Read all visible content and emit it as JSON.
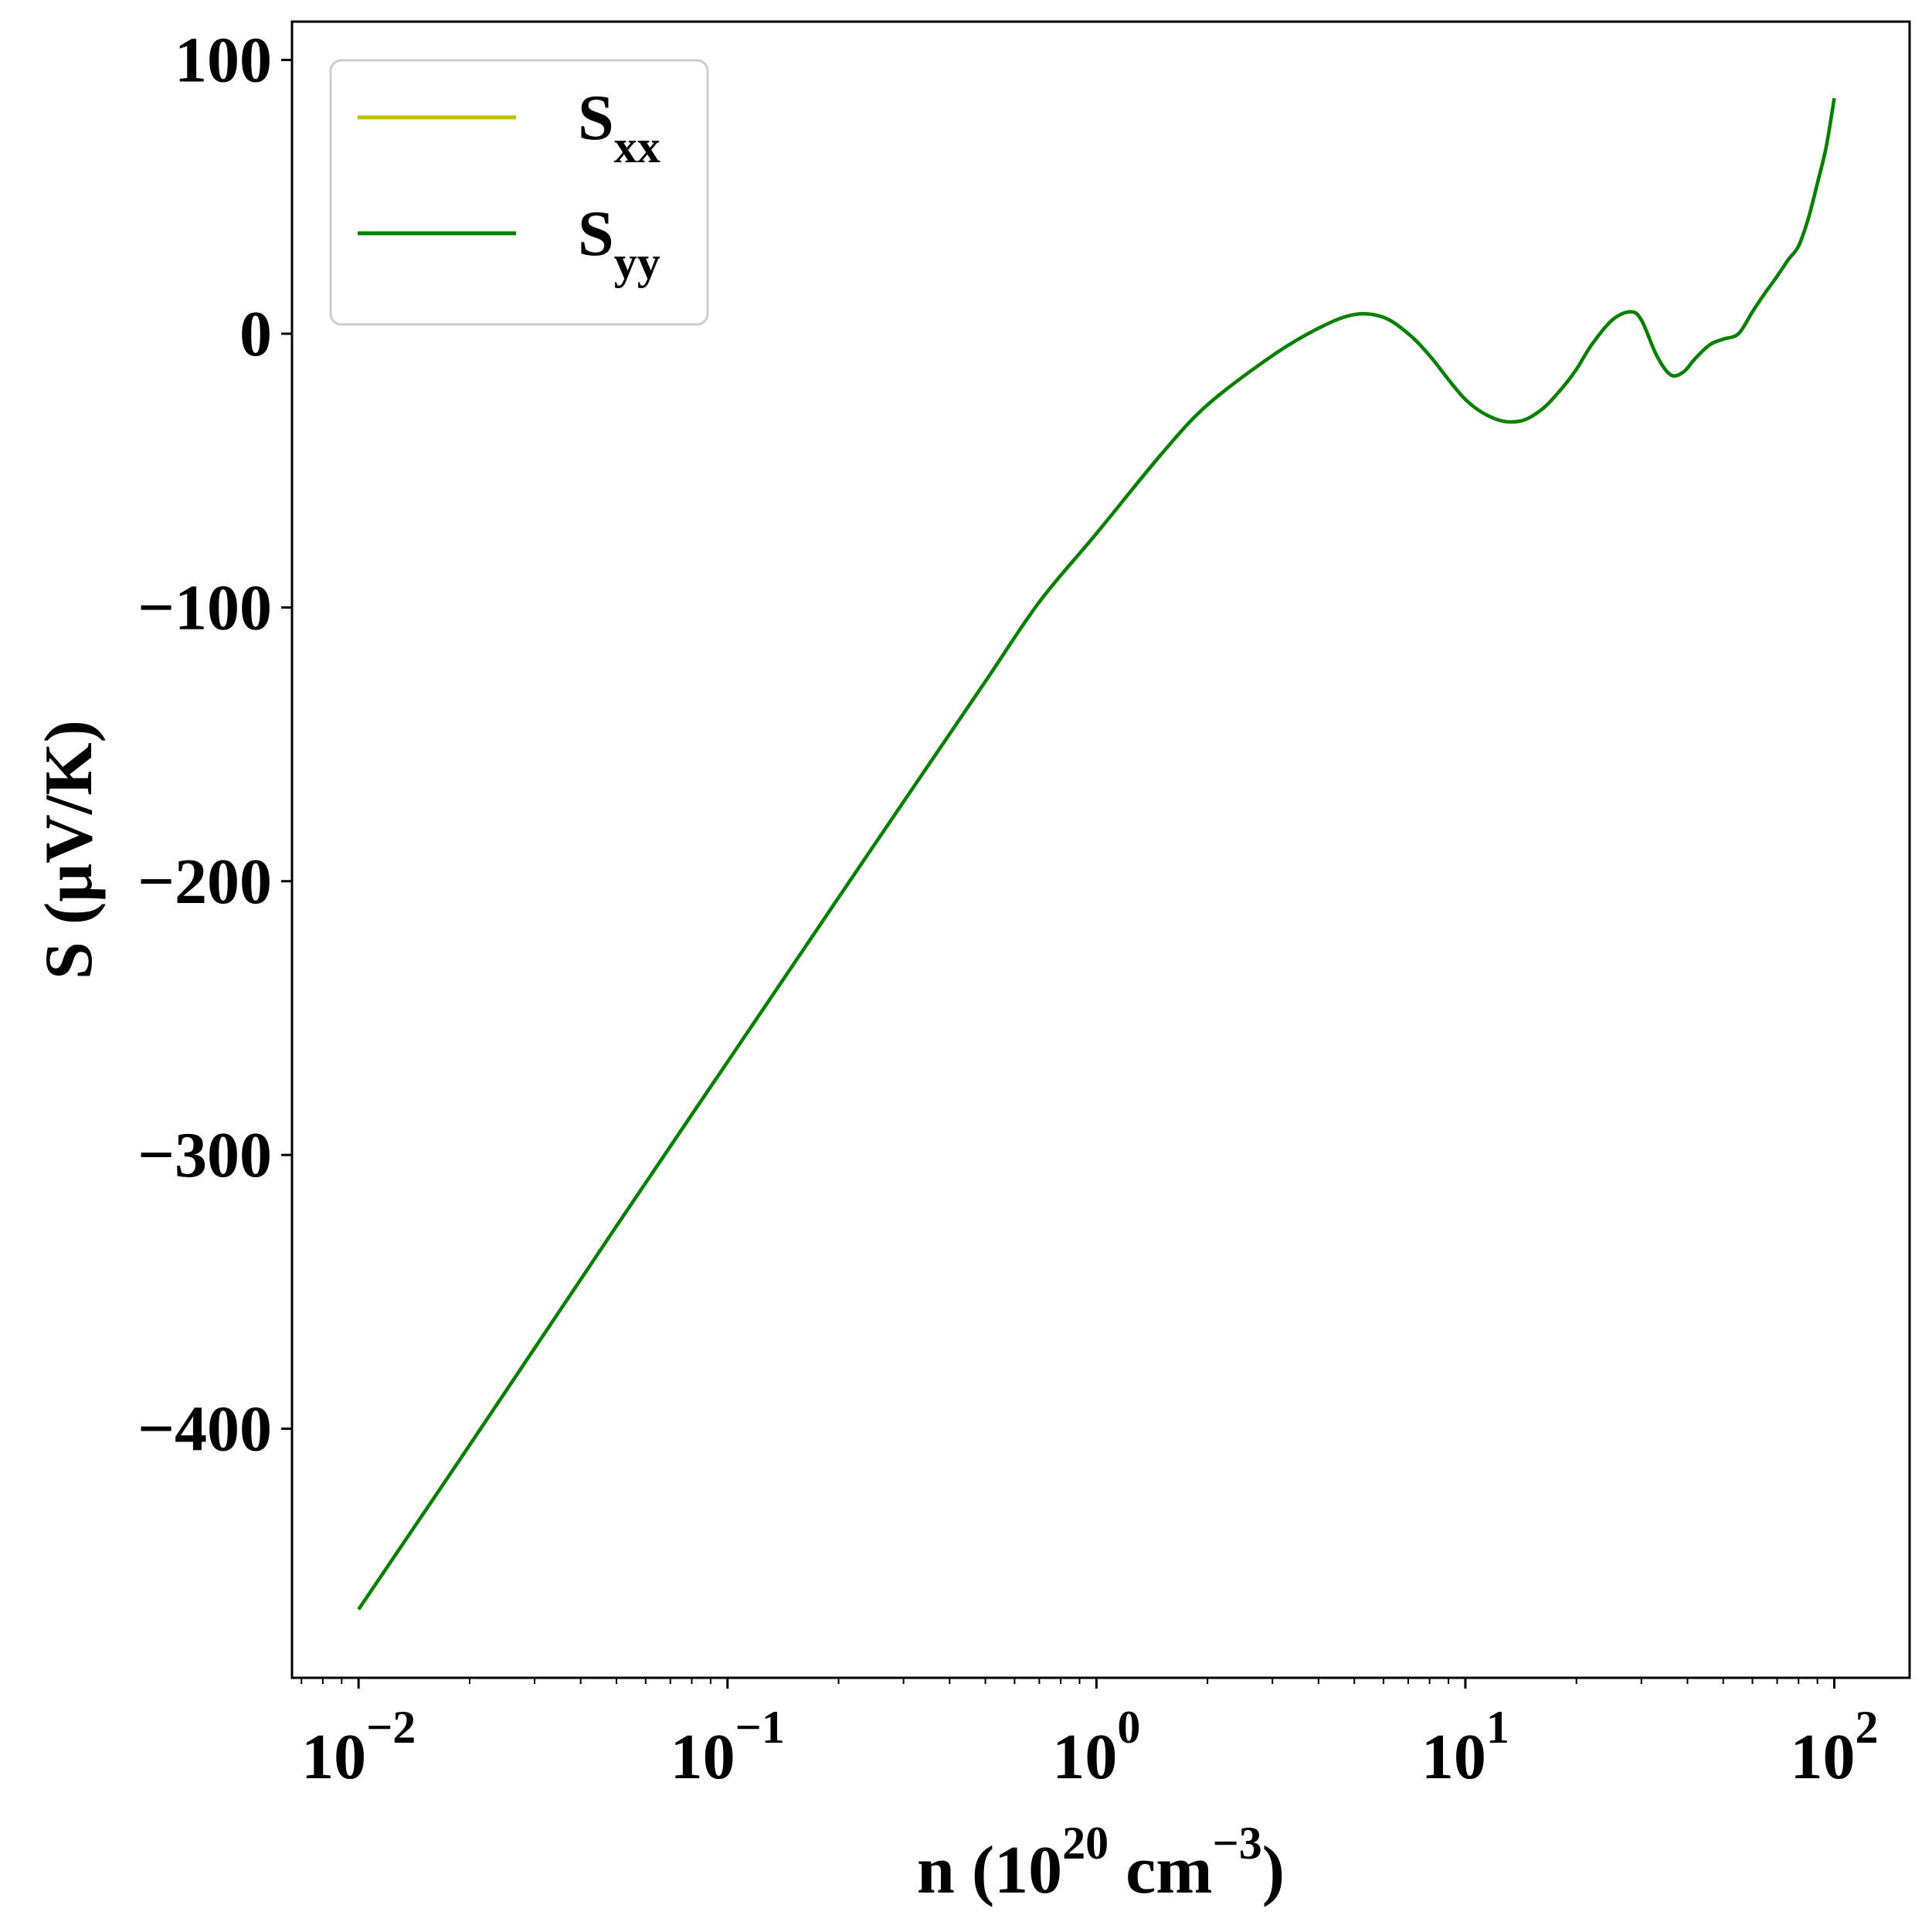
{
  "chart_data": {
    "type": "line",
    "xlabel": {
      "base": "n (10",
      "sup1": "20",
      "mid": " cm",
      "sup2": "−3",
      "end": ")"
    },
    "ylabel": "S (μV/K)",
    "x_scale": "log",
    "xlim": [
      0.0066,
      160
    ],
    "ylim": [
      -491,
      114
    ],
    "grid": false,
    "legend_position": "upper-left",
    "y_ticks": [
      {
        "value": 100,
        "label": "100"
      },
      {
        "value": 0,
        "label": "0"
      },
      {
        "value": -100,
        "label": "−100"
      },
      {
        "value": -200,
        "label": "−200"
      },
      {
        "value": -300,
        "label": "−300"
      },
      {
        "value": -400,
        "label": "−400"
      }
    ],
    "x_ticks": [
      {
        "value": 0.01,
        "base": "10",
        "exp": "−2"
      },
      {
        "value": 0.1,
        "base": "10",
        "exp": "−1"
      },
      {
        "value": 1,
        "base": "10",
        "exp": "0"
      },
      {
        "value": 10,
        "base": "10",
        "exp": "1"
      },
      {
        "value": 100,
        "base": "10",
        "exp": "2"
      }
    ],
    "series": [
      {
        "name": "S",
        "sub": "xx",
        "color": "#bfbf00",
        "x": [
          0.01,
          0.02,
          0.05,
          0.1,
          0.2,
          0.3,
          0.5,
          0.7,
          1,
          1.5,
          2,
          3,
          4,
          5,
          6,
          7,
          8,
          10,
          12,
          14,
          16,
          18,
          20,
          22,
          25,
          28,
          30,
          33,
          36,
          39,
          42,
          46,
          50,
          55,
          60,
          65,
          70,
          75,
          80,
          85,
          90,
          95,
          100
        ],
        "y": [
          -466,
          -406,
          -326,
          -266,
          -206,
          -171,
          -127,
          -98,
          -73,
          -44,
          -26,
          -8,
          2,
          7,
          6,
          0,
          -8,
          -24,
          -31,
          -32,
          -28,
          -21,
          -13,
          -4,
          5,
          8,
          5,
          -8,
          -15,
          -14,
          -9,
          -4,
          -2,
          0,
          8,
          15,
          21,
          27,
          32,
          42,
          55,
          68,
          86
        ]
      },
      {
        "name": "S",
        "sub": "yy",
        "color": "#008000",
        "x": [
          0.01,
          0.02,
          0.05,
          0.1,
          0.2,
          0.3,
          0.5,
          0.7,
          1,
          1.5,
          2,
          3,
          4,
          5,
          6,
          7,
          8,
          10,
          12,
          14,
          16,
          18,
          20,
          22,
          25,
          28,
          30,
          33,
          36,
          39,
          42,
          46,
          50,
          55,
          60,
          65,
          70,
          75,
          80,
          85,
          90,
          95,
          100
        ],
        "y": [
          -466,
          -406,
          -326,
          -266,
          -206,
          -171,
          -127,
          -98,
          -73,
          -44,
          -26,
          -8,
          2,
          7,
          6,
          0,
          -8,
          -24,
          -31,
          -32,
          -28,
          -21,
          -13,
          -4,
          5,
          8,
          5,
          -8,
          -15,
          -14,
          -9,
          -4,
          -2,
          0,
          8,
          15,
          21,
          27,
          32,
          42,
          55,
          68,
          86
        ]
      }
    ]
  }
}
